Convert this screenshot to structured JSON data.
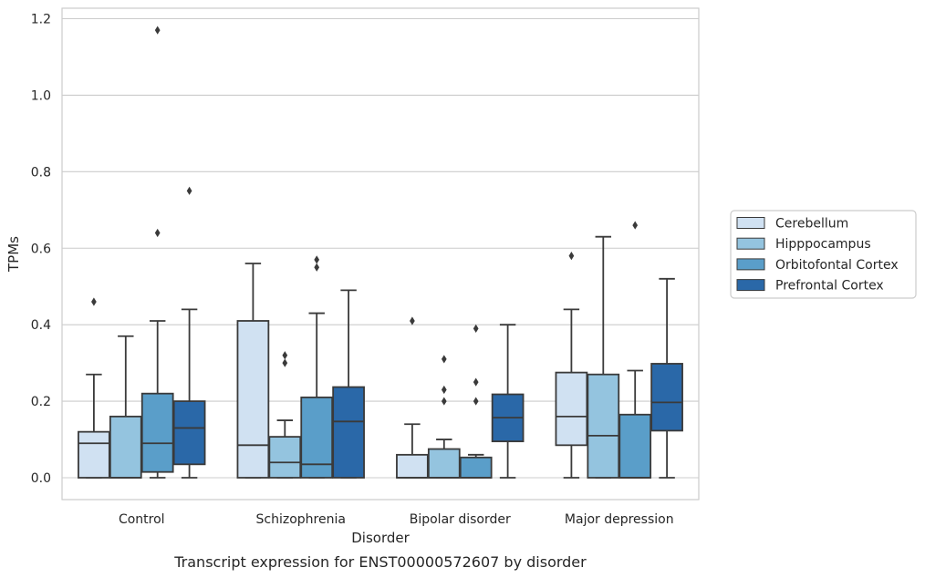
{
  "chart_data": {
    "type": "box",
    "title": "",
    "caption": "Transcript expression for ENST00000572607 by disorder",
    "xlabel": "Disorder",
    "ylabel": "TPMs",
    "ylim": [
      -0.057,
      1.23
    ],
    "yticks": [
      0.0,
      0.2,
      0.4,
      0.6,
      0.8,
      1.0,
      1.2
    ],
    "ytick_labels": [
      "0.0",
      "0.2",
      "0.4",
      "0.6",
      "0.8",
      "1.0",
      "1.2"
    ],
    "grid": "horizontal",
    "legend_position": "right",
    "categories": [
      "Control",
      "Schizophrenia",
      "Bipolar disorder",
      "Major depression"
    ],
    "series": [
      {
        "name": "Cerebellum",
        "color": "#d0e1f2",
        "boxes": [
          {
            "min": 0.0,
            "q1": 0.0,
            "median": 0.09,
            "q3": 0.12,
            "max": 0.27,
            "outliers": [
              0.46
            ]
          },
          {
            "min": 0.0,
            "q1": 0.0,
            "median": 0.085,
            "q3": 0.41,
            "max": 0.56,
            "outliers": []
          },
          {
            "min": 0.0,
            "q1": 0.0,
            "median": 0.0,
            "q3": 0.06,
            "max": 0.14,
            "outliers": [
              0.41
            ]
          },
          {
            "min": 0.0,
            "q1": 0.085,
            "median": 0.16,
            "q3": 0.275,
            "max": 0.44,
            "outliers": [
              0.58
            ]
          }
        ]
      },
      {
        "name": "Hipppocampus",
        "color": "#94c4df",
        "boxes": [
          {
            "min": 0.0,
            "q1": 0.0,
            "median": 0.0,
            "q3": 0.16,
            "max": 0.37,
            "outliers": []
          },
          {
            "min": 0.0,
            "q1": 0.0,
            "median": 0.04,
            "q3": 0.107,
            "max": 0.15,
            "outliers": [
              0.3,
              0.32
            ]
          },
          {
            "min": 0.0,
            "q1": 0.0,
            "median": 0.0,
            "q3": 0.075,
            "max": 0.1,
            "outliers": [
              0.2,
              0.23,
              0.31
            ]
          },
          {
            "min": 0.0,
            "q1": 0.0,
            "median": 0.11,
            "q3": 0.27,
            "max": 0.63,
            "outliers": []
          }
        ]
      },
      {
        "name": "Orbitofontal Cortex",
        "color": "#5a9ec9",
        "boxes": [
          {
            "min": 0.0,
            "q1": 0.015,
            "median": 0.09,
            "q3": 0.22,
            "max": 0.41,
            "outliers": [
              0.64,
              1.17
            ]
          },
          {
            "min": 0.0,
            "q1": 0.0,
            "median": 0.035,
            "q3": 0.21,
            "max": 0.43,
            "outliers": [
              0.55,
              0.57
            ]
          },
          {
            "min": 0.0,
            "q1": 0.0,
            "median": 0.0,
            "q3": 0.053,
            "max": 0.06,
            "outliers": [
              0.2,
              0.25,
              0.39
            ]
          },
          {
            "min": 0.0,
            "q1": 0.0,
            "median": 0.0,
            "q3": 0.165,
            "max": 0.28,
            "outliers": [
              0.66
            ]
          }
        ]
      },
      {
        "name": "Prefrontal Cortex",
        "color": "#2a68a8",
        "boxes": [
          {
            "min": 0.0,
            "q1": 0.035,
            "median": 0.13,
            "q3": 0.2,
            "max": 0.44,
            "outliers": [
              0.75
            ]
          },
          {
            "min": 0.0,
            "q1": 0.0,
            "median": 0.147,
            "q3": 0.237,
            "max": 0.49,
            "outliers": []
          },
          {
            "min": 0.0,
            "q1": 0.095,
            "median": 0.157,
            "q3": 0.218,
            "max": 0.4,
            "outliers": []
          },
          {
            "min": 0.0,
            "q1": 0.123,
            "median": 0.197,
            "q3": 0.298,
            "max": 0.52,
            "outliers": []
          }
        ]
      }
    ]
  }
}
